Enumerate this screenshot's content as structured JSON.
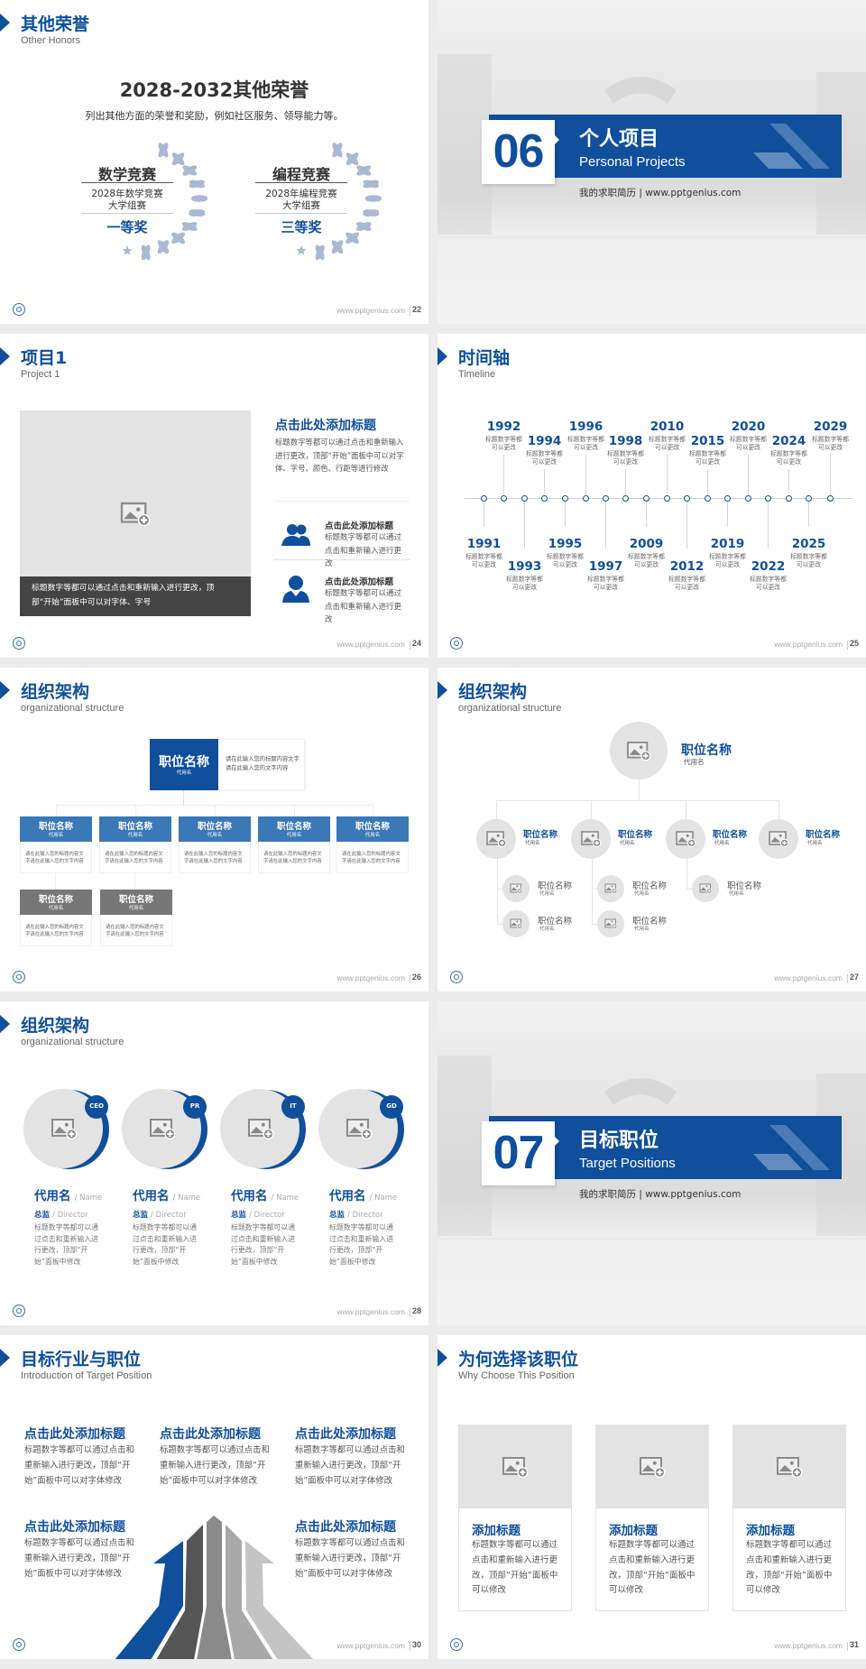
{
  "footer_url": "www.pptgenius.com",
  "colors": {
    "primary": "#0f4f9c",
    "secondary": "#3a78b8",
    "gray_box": "#777777",
    "placeholder": "#e3e3e3",
    "caption_bar": "#444444"
  },
  "s22": {
    "title": "其他荣誉",
    "subtitle": "Other Honors",
    "page": "22",
    "heading": "2028-2032其他荣誉",
    "description": "列出其他方面的荣誉和奖励，例如社区服务、领导能力等。",
    "awards": [
      {
        "name": "数学竞赛",
        "detail1": "2028年数学竞赛",
        "detail2": "大学组赛",
        "prize": "一等奖"
      },
      {
        "name": "编程竞赛",
        "detail1": "2028年编程竞赛",
        "detail2": "大学组赛",
        "prize": "三等奖"
      }
    ]
  },
  "s06": {
    "number": "06",
    "title": "个人项目",
    "subtitle": "Personal Projects",
    "tagline": "我的求职简历 | www.pptgenius.com"
  },
  "s24": {
    "title": "项目1",
    "subtitle": "Project 1",
    "page": "24",
    "caption": "标题数字等都可以通过点击和重新输入进行更改，顶部“开始”面板中可以对字体、字号",
    "main_heading": "点击此处添加标题",
    "main_body": "标题数字等都可以通过点击和重新输入进行更改，顶部“开始”面板中可以对字体、字号、颜色、行距等进行修改",
    "items": [
      {
        "icon": "group-icon",
        "heading": "点击此处添加标题",
        "body": "标题数字等都可以通过点击和重新输入进行更改"
      },
      {
        "icon": "person-icon",
        "heading": "点击此处添加标题",
        "body": "标题数字等都可以通过点击和重新输入进行更改"
      }
    ]
  },
  "s25": {
    "title": "时间轴",
    "subtitle": "Timeline",
    "page": "25",
    "events": [
      {
        "year": "1991",
        "text": "标题数字等都可以更改"
      },
      {
        "year": "1992",
        "text": "标题数字等都可以更改"
      },
      {
        "year": "1993",
        "text": "标题数字等都可以更改"
      },
      {
        "year": "1994",
        "text": "标题数字等都可以更改"
      },
      {
        "year": "1995",
        "text": "标题数字等都可以更改"
      },
      {
        "year": "1996",
        "text": "标题数字等都可以更改"
      },
      {
        "year": "1997",
        "text": "标题数字等都可以更改"
      },
      {
        "year": "1998",
        "text": "标题数字等都可以更改"
      },
      {
        "year": "2009",
        "text": "标题数字等都可以更改"
      },
      {
        "year": "2010",
        "text": "标题数字等都可以更改"
      },
      {
        "year": "2012",
        "text": "标题数字等都可以更改"
      },
      {
        "year": "2015",
        "text": "标题数字等都可以更改"
      },
      {
        "year": "2019",
        "text": "标题数字等都可以更改"
      },
      {
        "year": "2020",
        "text": "标题数字等都可以更改"
      },
      {
        "year": "2022",
        "text": "标题数字等都可以更改"
      },
      {
        "year": "2024",
        "text": "标题数字等都可以更改"
      },
      {
        "year": "2025",
        "text": "标题数字等都可以更改"
      },
      {
        "year": "2029",
        "text": "标题数字等都可以更改"
      }
    ]
  },
  "s26": {
    "title": "组织架构",
    "subtitle": "organizational structure",
    "page": "26",
    "top": {
      "name": "职位名称",
      "alias": "代用名",
      "desc": "请在此输入您的标题内容文字请在此输入您的文字内容"
    },
    "positions": [
      {
        "name": "职位名称",
        "alias": "代用名",
        "desc": "请在此输入您的标题内容文字请在此输入您的文字内容"
      },
      {
        "name": "职位名称",
        "alias": "代用名",
        "desc": "请在此输入您的标题内容文字请在此输入您的文字内容"
      },
      {
        "name": "职位名称",
        "alias": "代用名",
        "desc": "请在此输入您的标题内容文字请在此输入您的文字内容"
      },
      {
        "name": "职位名称",
        "alias": "代用名",
        "desc": "请在此输入您的标题内容文字请在此输入您的文字内容"
      },
      {
        "name": "职位名称",
        "alias": "代用名",
        "desc": "请在此输入您的标题内容文字请在此输入您的文字内容"
      },
      {
        "name": "职位名称",
        "alias": "代用名",
        "desc": "请在此输入您的标题内容文字请在此输入您的文字内容"
      },
      {
        "name": "职位名称",
        "alias": "代用名",
        "desc": "请在此输入您的标题内容文字请在此输入您的文字内容"
      }
    ]
  },
  "s27": {
    "title": "组织架构",
    "subtitle": "organizational structure",
    "page": "27",
    "top": {
      "name": "职位名称",
      "alias": "代用名"
    },
    "level2": [
      {
        "name": "职位名称",
        "alias": "代用名"
      },
      {
        "name": "职位名称",
        "alias": "代用名"
      },
      {
        "name": "职位名称",
        "alias": "代用名"
      },
      {
        "name": "职位名称",
        "alias": "代用名"
      }
    ],
    "level3": [
      {
        "name": "职位名称",
        "alias": "代用名"
      },
      {
        "name": "职位名称",
        "alias": "代用名"
      },
      {
        "name": "职位名称",
        "alias": "代用名"
      },
      {
        "name": "职位名称",
        "alias": "代用名"
      },
      {
        "name": "职位名称",
        "alias": "代用名"
      }
    ]
  },
  "s28": {
    "title": "组织架构",
    "subtitle": "organizational structure",
    "page": "28",
    "members": [
      {
        "badge": "CEO",
        "name": "代用名",
        "name_en": "/ Name",
        "role": "总监",
        "role_en": "/  Director",
        "body": "标题数字等都可以通过点击和重新输入进行更改，顶部“开始”面板中修改"
      },
      {
        "badge": "PR",
        "name": "代用名",
        "name_en": "/ Name",
        "role": "总监",
        "role_en": "/  Director",
        "body": "标题数字等都可以通过点击和重新输入进行更改，顶部“开始”面板中修改"
      },
      {
        "badge": "IT",
        "name": "代用名",
        "name_en": "/ Name",
        "role": "总监",
        "role_en": "/  Director",
        "body": "标题数字等都可以通过点击和重新输入进行更改，顶部“开始”面板中修改"
      },
      {
        "badge": "GD",
        "name": "代用名",
        "name_en": "/ Name",
        "role": "总监",
        "role_en": "/  Director",
        "body": "标题数字等都可以通过点击和重新输入进行更改，顶部“开始”面板中修改"
      }
    ]
  },
  "s07": {
    "number": "07",
    "title": "目标职位",
    "subtitle": "Target Positions",
    "tagline": "我的求职简历 | www.pptgenius.com"
  },
  "s30": {
    "title": "目标行业与职位",
    "subtitle": "Introduction of Target Position",
    "page": "30",
    "blocks": [
      {
        "heading": "点击此处添加标题",
        "body": "标题数字等都可以通过点击和重新输入进行更改，顶部“开始”面板中可以对字体修改"
      },
      {
        "heading": "点击此处添加标题",
        "body": "标题数字等都可以通过点击和重新输入进行更改，顶部“开始”面板中可以对字体修改"
      },
      {
        "heading": "点击此处添加标题",
        "body": "标题数字等都可以通过点击和重新输入进行更改，顶部“开始”面板中可以对字体修改"
      },
      {
        "heading": "点击此处添加标题",
        "body": "标题数字等都可以通过点击和重新输入进行更改，顶部“开始”面板中可以对字体修改"
      },
      {
        "heading": "点击此处添加标题",
        "body": "标题数字等都可以通过点击和重新输入进行更改，顶部“开始”面板中可以对字体修改"
      }
    ]
  },
  "s31": {
    "title": "为何选择该职位",
    "subtitle": "Why Choose This Position",
    "page": "31",
    "cards": [
      {
        "heading": "添加标题",
        "body": "标题数字等都可以通过点击和重新输入进行更改，顶部“开始”面板中可以修改"
      },
      {
        "heading": "添加标题",
        "body": "标题数字等都可以通过点击和重新输入进行更改，顶部“开始”面板中可以修改"
      },
      {
        "heading": "添加标题",
        "body": "标题数字等都可以通过点击和重新输入进行更改，顶部“开始”面板中可以修改"
      }
    ]
  }
}
